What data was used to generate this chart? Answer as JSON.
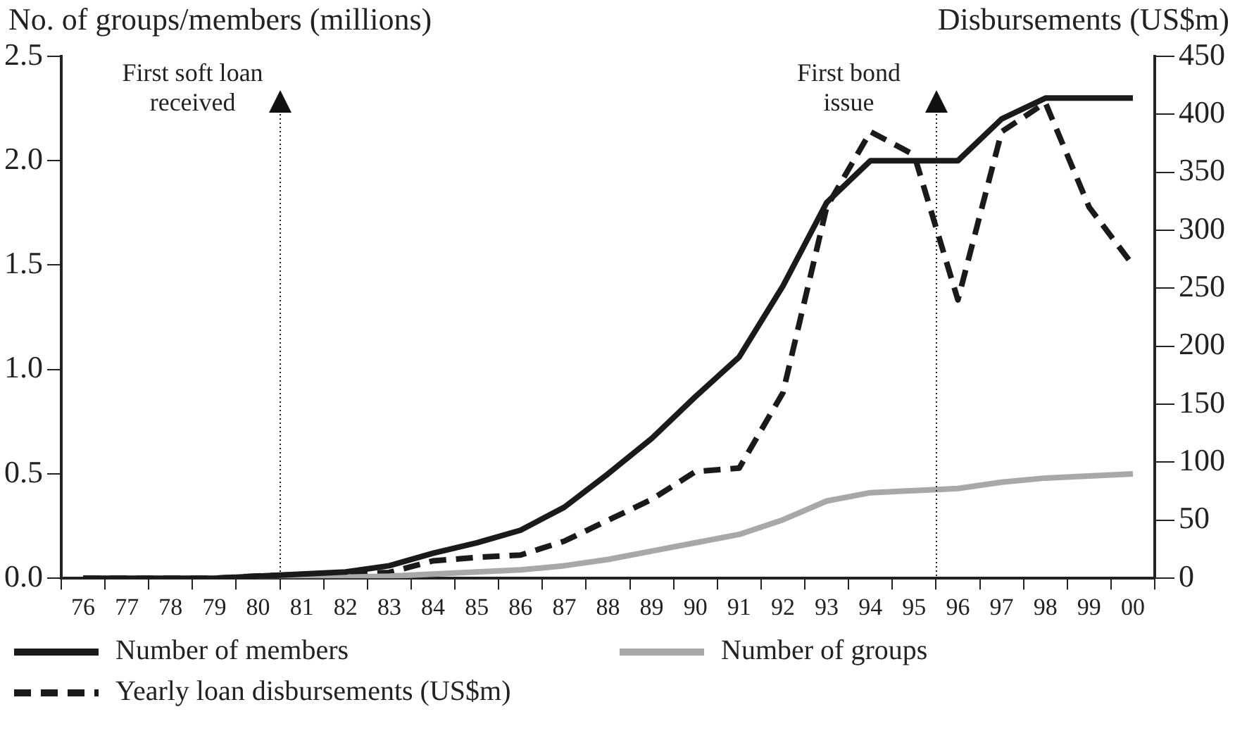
{
  "chart_data": {
    "type": "line",
    "ylabel": "No. of groups/members (millions)",
    "y2label": "Disbursements (US$m)",
    "categories": [
      "76",
      "77",
      "78",
      "79",
      "80",
      "81",
      "82",
      "83",
      "84",
      "85",
      "86",
      "87",
      "88",
      "89",
      "90",
      "91",
      "92",
      "93",
      "94",
      "95",
      "96",
      "97",
      "98",
      "99",
      "00"
    ],
    "series": [
      {
        "name": "Number of members",
        "color": "#1a1a1a",
        "line_style": "solid",
        "values": [
          0,
          0,
          0,
          0,
          0.01,
          0.02,
          0.03,
          0.06,
          0.12,
          0.17,
          0.23,
          0.34,
          0.5,
          0.67,
          0.87,
          1.06,
          1.4,
          1.8,
          2.0,
          2.0,
          2.0,
          2.2,
          2.3,
          2.3,
          2.3
        ]
      },
      {
        "name": "Number of groups",
        "color": "#a8a8aa",
        "line_style": "solid",
        "values": [
          null,
          null,
          null,
          null,
          0,
          0,
          0.005,
          0.01,
          0.02,
          0.03,
          0.04,
          0.06,
          0.09,
          0.13,
          0.17,
          0.21,
          0.28,
          0.37,
          0.41,
          0.42,
          0.43,
          0.46,
          0.48,
          0.49,
          0.5
        ]
      },
      {
        "name": "Yearly loan disbursements (US$m)",
        "color": "#1a1a1a",
        "line_style": "dashed",
        "axis": "y2",
        "values": [
          0,
          0,
          0,
          0,
          2,
          3,
          4,
          5,
          15,
          18,
          20,
          32,
          50,
          68,
          92,
          95,
          160,
          320,
          385,
          365,
          240,
          385,
          410,
          320,
          270
        ]
      }
    ],
    "ylim": [
      0,
      2.5
    ],
    "yticks": [
      {
        "value": 0,
        "label": "0.0"
      },
      {
        "value": 0.5,
        "label": "0.5"
      },
      {
        "value": 1,
        "label": "1.0"
      },
      {
        "value": 1.5,
        "label": "1.5"
      },
      {
        "value": 2,
        "label": "2.0"
      },
      {
        "value": 2.5,
        "label": "2.5"
      }
    ],
    "y2lim": [
      0,
      450
    ],
    "y2ticks": [
      0,
      50,
      100,
      150,
      200,
      250,
      300,
      350,
      400,
      450
    ],
    "annotations": [
      "First soft loan received",
      "First bond issue"
    ],
    "grid": false,
    "legend": "bottom",
    "marker": "none"
  }
}
